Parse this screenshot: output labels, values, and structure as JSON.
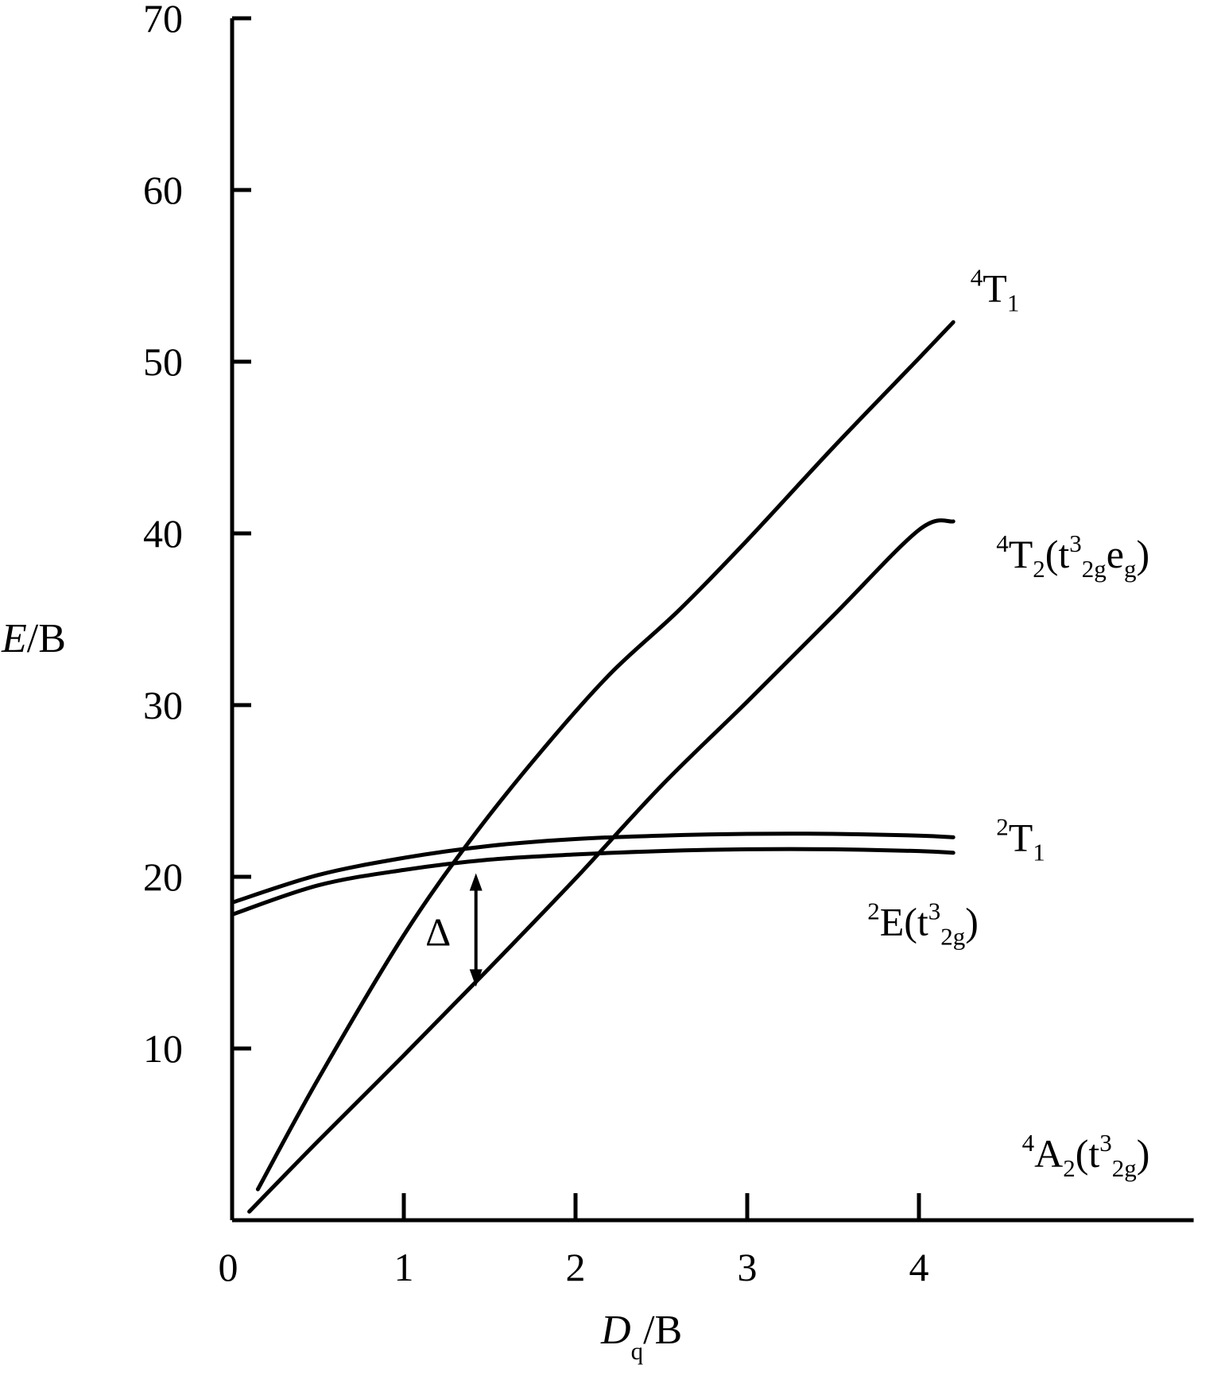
{
  "chart_data": {
    "type": "line",
    "xlabel": {
      "main": "D",
      "sub": "q",
      "rest": "/B"
    },
    "ylabel": {
      "italic": "E",
      "rest": "/B"
    },
    "xlim": [
      0,
      5.6
    ],
    "ylim": [
      0,
      70
    ],
    "x_ticks": [
      0,
      1,
      2,
      3,
      4
    ],
    "y_ticks": [
      10,
      20,
      30,
      40,
      50,
      60,
      70
    ],
    "series": [
      {
        "key": "T1_quartet",
        "label_parts": [
          {
            "t": "4",
            "s": "sup"
          },
          {
            "t": "T"
          },
          {
            "t": "1",
            "s": "sub"
          }
        ],
        "label_at": [
          4.3,
          53.5
        ],
        "points": [
          [
            0.15,
            1.8
          ],
          [
            0.5,
            8.2
          ],
          [
            1.0,
            16.6
          ],
          [
            1.4,
            22.3
          ],
          [
            1.8,
            27.3
          ],
          [
            2.2,
            31.8
          ],
          [
            2.6,
            35.5
          ],
          [
            3.0,
            39.6
          ],
          [
            3.5,
            45.0
          ],
          [
            4.0,
            50.2
          ],
          [
            4.2,
            52.3
          ]
        ]
      },
      {
        "key": "T2_quartet",
        "label_parts": [
          {
            "t": "4",
            "s": "sup"
          },
          {
            "t": "T"
          },
          {
            "t": "2",
            "s": "sub"
          },
          {
            "t": "(t"
          },
          {
            "t": "3",
            "s": "sup"
          },
          {
            "t": "2g",
            "s": "sub"
          },
          {
            "t": "e"
          },
          {
            "t": "g",
            "s": "sub"
          },
          {
            "t": ")"
          }
        ],
        "label_at": [
          4.45,
          38.0
        ],
        "points": [
          [
            0.1,
            0.5
          ],
          [
            0.5,
            4.6
          ],
          [
            1.0,
            9.6
          ],
          [
            1.5,
            14.7
          ],
          [
            2.0,
            19.9
          ],
          [
            2.5,
            25.3
          ],
          [
            3.0,
            30.2
          ],
          [
            3.5,
            35.2
          ],
          [
            4.0,
            40.2
          ],
          [
            4.2,
            40.7
          ]
        ]
      },
      {
        "key": "T1_doublet",
        "label_parts": [
          {
            "t": "2",
            "s": "sup"
          },
          {
            "t": "T"
          },
          {
            "t": "1",
            "s": "sub"
          }
        ],
        "label_at": [
          4.45,
          21.5
        ],
        "points": [
          [
            0.0,
            18.5
          ],
          [
            0.5,
            20.1
          ],
          [
            1.0,
            21.1
          ],
          [
            1.5,
            21.8
          ],
          [
            2.0,
            22.2
          ],
          [
            2.5,
            22.4
          ],
          [
            3.0,
            22.5
          ],
          [
            3.5,
            22.5
          ],
          [
            4.0,
            22.4
          ],
          [
            4.2,
            22.3
          ]
        ]
      },
      {
        "key": "E_doublet",
        "label_parts": [
          {
            "t": "2",
            "s": "sup"
          },
          {
            "t": "E(t"
          },
          {
            "t": "3",
            "s": "sup"
          },
          {
            "t": "2g",
            "s": "sub"
          },
          {
            "t": ")"
          }
        ],
        "label_at": [
          3.7,
          16.6
        ],
        "points": [
          [
            0.0,
            17.8
          ],
          [
            0.5,
            19.5
          ],
          [
            1.0,
            20.4
          ],
          [
            1.5,
            21.0
          ],
          [
            2.0,
            21.3
          ],
          [
            2.5,
            21.5
          ],
          [
            3.0,
            21.6
          ],
          [
            3.5,
            21.6
          ],
          [
            4.0,
            21.5
          ],
          [
            4.2,
            21.4
          ]
        ]
      },
      {
        "key": "A2_ground",
        "label_parts": [
          {
            "t": "4",
            "s": "sup"
          },
          {
            "t": "A"
          },
          {
            "t": "2",
            "s": "sub"
          },
          {
            "t": "(t"
          },
          {
            "t": "3",
            "s": "sup"
          },
          {
            "t": "2g",
            "s": "sub"
          },
          {
            "t": ")"
          }
        ],
        "label_at": [
          4.6,
          3.1
        ],
        "points": [
          [
            0,
            0
          ],
          [
            5.6,
            0
          ]
        ]
      }
    ],
    "annotations": [
      {
        "text": "Δ",
        "at": [
          1.2,
          16.0
        ]
      }
    ],
    "delta_arrow": {
      "x": 1.42,
      "y_from": 20.3,
      "y_to": 13.5
    }
  }
}
